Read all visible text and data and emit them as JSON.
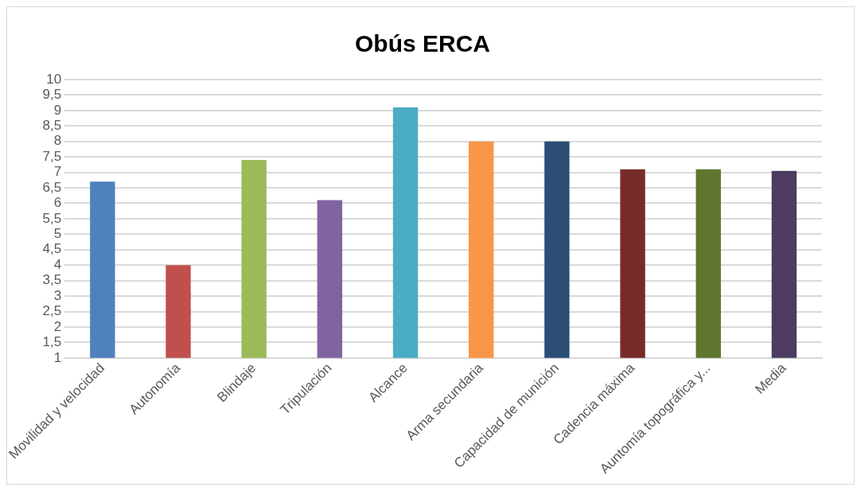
{
  "chart_data": {
    "type": "bar",
    "title": "Obús ERCA",
    "categories": [
      "Movilidad y velocidad",
      "Autonomía",
      "Blindaje",
      "Tripulación",
      "Alcance",
      "Arma secundaria",
      "Capacidad de munición",
      "Cadencia máxima",
      "Auntomía topográfica y...",
      "Media"
    ],
    "values": [
      6.7,
      4.0,
      7.4,
      6.1,
      9.1,
      8.0,
      8.0,
      7.1,
      7.1,
      7.05
    ],
    "colors": [
      "#4f81bd",
      "#c0504d",
      "#9bbb59",
      "#8064a2",
      "#4bacc6",
      "#f79646",
      "#2c4d75",
      "#772c2a",
      "#5f7530",
      "#4d3b62"
    ],
    "ylim": [
      1,
      10
    ],
    "yticks": [
      1,
      {
        "value": 1.5,
        "label": "1,5"
      },
      2,
      {
        "value": 2.5,
        "label": "2,5"
      },
      3,
      {
        "value": 3.5,
        "label": "3,5"
      },
      4,
      {
        "value": 4.5,
        "label": "4,5"
      },
      5,
      {
        "value": 5.5,
        "label": "5,5"
      },
      6,
      {
        "value": 6.5,
        "label": "6,5"
      },
      7,
      {
        "value": 7.5,
        "label": "7,5"
      },
      8,
      {
        "value": 8.5,
        "label": "8,5"
      },
      9,
      {
        "value": 9.5,
        "label": "9,5"
      },
      10
    ],
    "grid": "y",
    "legend": false
  }
}
